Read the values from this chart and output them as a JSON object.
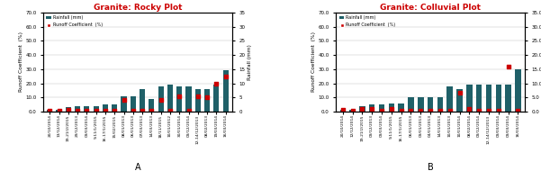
{
  "chart_A": {
    "title": "Granite: Rocky Plot",
    "categories": [
      "20/10/2014",
      "13/12/2014",
      "19-21/2/2015",
      "29/12/2013",
      "09/03/2014",
      "9-11/1/2015",
      "16-17/1/2015",
      "15/02/2015",
      "08/01/2013",
      "06/01/2013",
      "07/03/2013",
      "14/03/2013",
      "18/11/2015",
      "10/01/2012",
      "30/01/2014",
      "09/12/2014",
      "12-14/12/2013",
      "08/02/2013",
      "19/03/2014",
      "16/03/2014"
    ],
    "rainfall_mm": [
      0.5,
      0.5,
      1.5,
      2.0,
      2.0,
      2.0,
      2.5,
      2.5,
      5.5,
      5.5,
      8.0,
      4.5,
      9.0,
      9.5,
      9.0,
      9.0,
      8.0,
      8.0,
      9.5,
      14.5
    ],
    "runoff_pct": [
      0.5,
      0.5,
      1.0,
      0.5,
      0.5,
      0.5,
      0.5,
      0.5,
      8.5,
      0.5,
      0.5,
      0.5,
      8.5,
      0.5,
      11.0,
      0.5,
      11.0,
      10.5,
      20.0,
      25.0
    ],
    "ylim_left": [
      0,
      70
    ],
    "ylim_right": [
      0,
      35
    ],
    "yticks_left": [
      0.0,
      10.0,
      20.0,
      30.0,
      40.0,
      50.0,
      60.0,
      70.0
    ],
    "yticks_right": [
      0,
      5,
      10,
      15,
      20,
      25,
      30,
      35
    ],
    "label": "A"
  },
  "chart_B": {
    "title": "Granite: Colluvial Plot",
    "categories": [
      "20/10/2014",
      "12/12/2014",
      "19-21/2/2015",
      "09/12/2013",
      "09/03/2014",
      "9-11/1/2015",
      "16-17/1/2015",
      "06/01/2013",
      "09/01/2013",
      "04/01/2013",
      "14/01/2013",
      "10/01/2013",
      "10/01/2014",
      "08/02/2014",
      "09/12/2014",
      "12-14/12/2013",
      "09/03/2014",
      "09/03/2014",
      "16/03/2014"
    ],
    "rainfall_mm": [
      0.5,
      0.5,
      2.0,
      2.5,
      2.5,
      3.0,
      3.0,
      5.0,
      5.0,
      5.0,
      5.0,
      9.0,
      8.0,
      9.5,
      9.5,
      9.5,
      9.5,
      9.5,
      15.0
    ],
    "runoff_pct": [
      1.5,
      0.5,
      2.0,
      2.0,
      0.5,
      2.0,
      0.5,
      0.5,
      0.5,
      0.5,
      0.5,
      0.5,
      13.5,
      2.0,
      0.5,
      0.5,
      0.5,
      32.0,
      0.5
    ],
    "ylim_left": [
      0,
      70
    ],
    "ylim_right": [
      0,
      35
    ],
    "yticks_left": [
      0.0,
      10.0,
      20.0,
      30.0,
      40.0,
      50.0,
      60.0,
      70.0
    ],
    "yticks_right": [
      0.0,
      5.0,
      10.0,
      15.0,
      20.0,
      25.0,
      30.0,
      35.0
    ],
    "label": "B"
  },
  "bar_color": "#1f6068",
  "scatter_color": "#cc0000",
  "title_color": "#cc0000",
  "bg_color": "#ffffff",
  "legend_rainfall_label": "Rainfall (mm)",
  "legend_runoff_label": "Runoff Coefficient  (%)",
  "ylabel_left": "Runoff Coefficient  (%)",
  "ylabel_right": "Rainfall (mm)"
}
